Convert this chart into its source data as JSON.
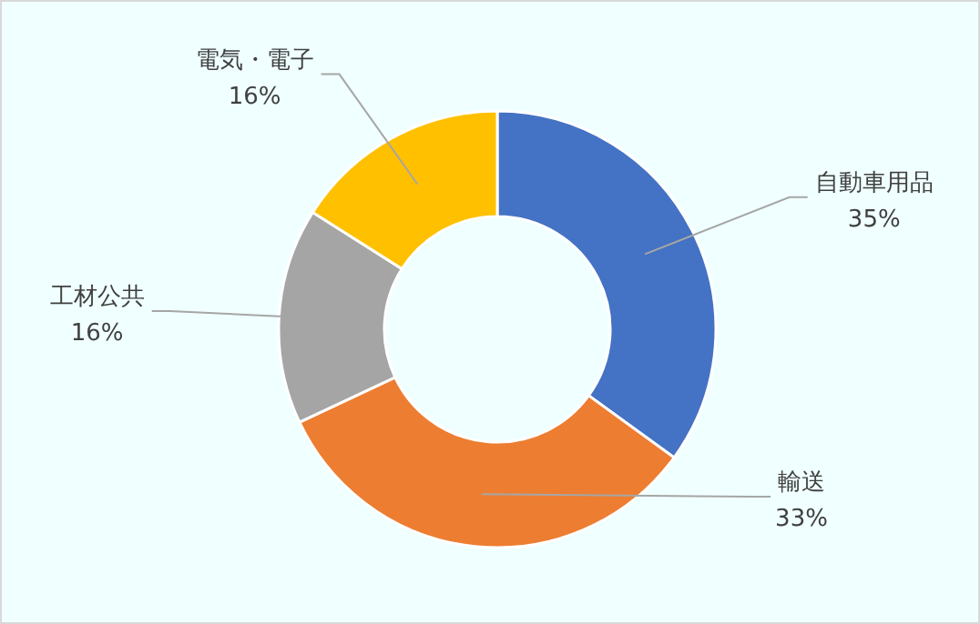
{
  "chart_data": {
    "type": "donut",
    "categories": [
      "自動車用品",
      "輸送",
      "工材公共",
      "電気・電子"
    ],
    "values": [
      35,
      33,
      16,
      16
    ],
    "colors": [
      "#4472c4",
      "#ed7d31",
      "#a5a5a5",
      "#ffc000"
    ],
    "value_labels": [
      "35%",
      "33%",
      "16%",
      "16%"
    ]
  }
}
